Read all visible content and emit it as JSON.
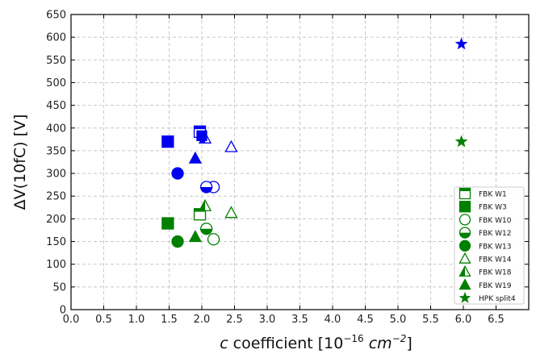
{
  "chart_data": {
    "type": "scatter",
    "title": "",
    "xlabel": "c coefficient [10^-16 cm^-2]",
    "xlabel_parts": {
      "italic": "c",
      "text": " coefficient [10",
      "exp1": "−16",
      "unit": " cm",
      "exp2": "−2",
      "close": "]"
    },
    "ylabel": "ΔV(10fC) [V]",
    "xlim": [
      0.0,
      7.0
    ],
    "ylim": [
      0,
      650
    ],
    "xticks": [
      "0.0",
      "0.5",
      "1.0",
      "1.5",
      "2.0",
      "2.5",
      "3.0",
      "3.5",
      "4.0",
      "4.5",
      "5.0",
      "5.5",
      "6.0",
      "6.5"
    ],
    "yticks": [
      "0",
      "50",
      "100",
      "150",
      "200",
      "250",
      "300",
      "350",
      "400",
      "450",
      "500",
      "550",
      "600",
      "650"
    ],
    "grid": true,
    "legend_position": "lower-right",
    "colors": {
      "blue": "#0000ee",
      "green": "#008000"
    },
    "series": [
      {
        "name": "FBK W1",
        "marker": "square-open",
        "points": [
          [
            1.97,
            392,
            "blue"
          ],
          [
            1.97,
            210,
            "green"
          ]
        ]
      },
      {
        "name": "FBK W3",
        "marker": "square-filled",
        "points": [
          [
            1.48,
            370,
            "blue"
          ],
          [
            1.48,
            190,
            "green"
          ]
        ]
      },
      {
        "name": "FBK W10",
        "marker": "circle-open",
        "points": [
          [
            2.18,
            270,
            "blue"
          ],
          [
            2.18,
            155,
            "green"
          ]
        ]
      },
      {
        "name": "FBK W12",
        "marker": "circle-half",
        "points": [
          [
            2.07,
            270,
            "blue"
          ],
          [
            2.07,
            178,
            "green"
          ]
        ]
      },
      {
        "name": "FBK W13",
        "marker": "circle-filled",
        "points": [
          [
            1.63,
            300,
            "blue"
          ],
          [
            1.63,
            150,
            "green"
          ]
        ]
      },
      {
        "name": "FBK W14",
        "marker": "triangle-open",
        "points": [
          [
            2.45,
            358,
            "blue"
          ],
          [
            2.45,
            213,
            "green"
          ]
        ]
      },
      {
        "name": "FBK W18",
        "marker": "triangle-half",
        "points": [
          [
            2.05,
            377,
            "blue"
          ],
          [
            2.05,
            228,
            "green"
          ]
        ]
      },
      {
        "name": "FBK W19",
        "marker": "triangle-filled",
        "points": [
          [
            1.9,
            333,
            "blue"
          ],
          [
            1.9,
            160,
            "green"
          ]
        ]
      },
      {
        "name": "HPK split4",
        "marker": "star",
        "points": [
          [
            5.97,
            585,
            "blue"
          ],
          [
            5.97,
            370,
            "green"
          ]
        ]
      }
    ],
    "extra_points": [
      {
        "marker": "square-filled",
        "x": 2.0,
        "y": 383,
        "color": "blue"
      }
    ],
    "legend_color": "green"
  }
}
